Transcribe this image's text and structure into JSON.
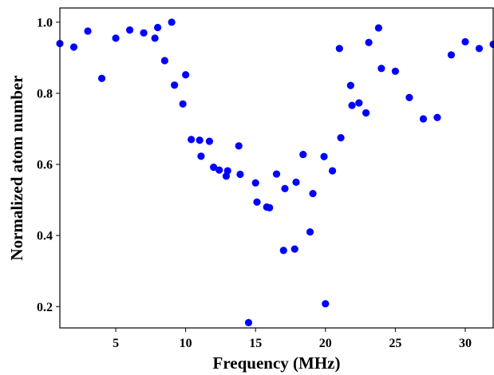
{
  "chart_data": {
    "type": "scatter",
    "xlabel": "Frequency (MHz)",
    "ylabel": "Normalized atom number",
    "xlim": [
      1,
      32
    ],
    "ylim": [
      0.14,
      1.04
    ],
    "x_ticks": [
      5,
      10,
      15,
      20,
      25,
      30
    ],
    "y_ticks": [
      0.2,
      0.4,
      0.6,
      0.8,
      1.0
    ],
    "x_tick_labels": [
      "5",
      "10",
      "15",
      "20",
      "25",
      "30"
    ],
    "y_tick_labels": [
      "0.2",
      "0.4",
      "0.6",
      "0.8",
      "1.0"
    ],
    "grid": false,
    "marker_color": "#0000ff",
    "series": [
      {
        "x": [
          1.0,
          2.0,
          3.0,
          4.0,
          5.0,
          6.0,
          7.0,
          7.8,
          8.0,
          8.5,
          9.0,
          9.2,
          9.8,
          10.0,
          10.4,
          11.0,
          11.1,
          11.7,
          12.0,
          12.4,
          12.9,
          13.0,
          13.8,
          13.9,
          14.5,
          15.0,
          15.1,
          15.8,
          16.0,
          16.5,
          17.0,
          17.1,
          17.8,
          17.9,
          18.4,
          18.9,
          19.1,
          19.9,
          20.0,
          20.5,
          21.0,
          21.1,
          21.8,
          21.9,
          22.4,
          22.9,
          23.1,
          23.8,
          24.0,
          25.0,
          26.0,
          27.0,
          28.0,
          29.0,
          30.0,
          31.0,
          32.0
        ],
        "y": [
          0.94,
          0.93,
          0.975,
          0.842,
          0.955,
          0.978,
          0.97,
          0.955,
          0.985,
          0.892,
          1.0,
          0.823,
          0.77,
          0.852,
          0.67,
          0.668,
          0.623,
          0.665,
          0.592,
          0.584,
          0.567,
          0.582,
          0.652,
          0.572,
          0.155,
          0.548,
          0.494,
          0.48,
          0.478,
          0.573,
          0.358,
          0.532,
          0.362,
          0.55,
          0.628,
          0.41,
          0.518,
          0.622,
          0.208,
          0.582,
          0.926,
          0.675,
          0.822,
          0.766,
          0.773,
          0.745,
          0.943,
          0.984,
          0.87,
          0.862,
          0.788,
          0.728,
          0.732,
          0.908,
          0.945,
          0.926,
          0.938
        ]
      }
    ]
  }
}
